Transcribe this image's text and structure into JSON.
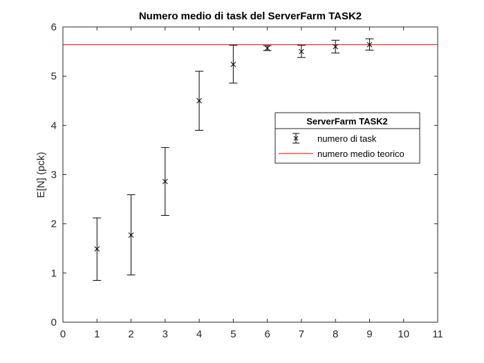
{
  "chart_data": {
    "type": "scatter",
    "title": "Numero medio di task del ServerFarm TASK2",
    "xlabel": "",
    "ylabel": "E[N] (pck)",
    "xlim": [
      0,
      11
    ],
    "ylim": [
      0,
      6
    ],
    "xticks": [
      "0",
      "1",
      "2",
      "3",
      "4",
      "5",
      "6",
      "7",
      "8",
      "9",
      "10",
      "11"
    ],
    "yticks": [
      "0",
      "1",
      "2",
      "3",
      "4",
      "5",
      "6"
    ],
    "grid": false,
    "legend": {
      "title": "ServerFarm TASK2",
      "placement": "right",
      "entries": [
        "numero di task",
        "numero medio teorico"
      ]
    },
    "series": [
      {
        "name": "numero di task",
        "marker": "x",
        "color": "#000000",
        "x": [
          1,
          2,
          3,
          4,
          5,
          6,
          7,
          8,
          9
        ],
        "y": [
          1.49,
          1.77,
          2.86,
          4.5,
          5.24,
          5.57,
          5.5,
          5.6,
          5.64
        ],
        "lower": [
          0.85,
          0.96,
          2.17,
          3.9,
          4.86,
          5.52,
          5.38,
          5.47,
          5.53
        ],
        "upper": [
          2.12,
          2.59,
          3.55,
          5.1,
          5.63,
          5.62,
          5.63,
          5.73,
          5.76
        ]
      },
      {
        "name": "numero medio teorico",
        "type": "hline",
        "color": "#ff0000",
        "y": 5.64
      }
    ]
  }
}
